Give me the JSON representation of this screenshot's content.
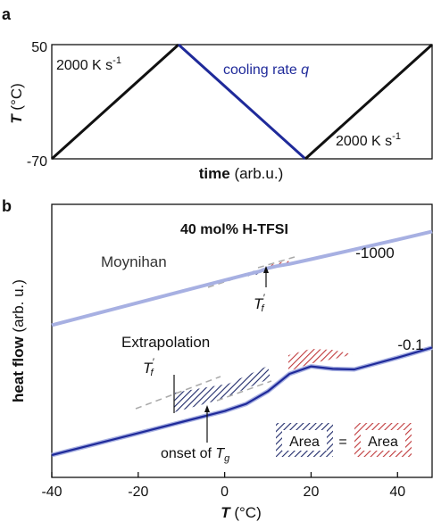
{
  "colors": {
    "axis": "#111111",
    "black_line": "#111111",
    "cooling": "#1f2a9a",
    "curve_light": "#a7b0e2",
    "curve_dark": "#1f2a9a",
    "dash": "#aaaaaa",
    "hatch_blue": "#1f2a6a",
    "hatch_red": "#c0393b"
  },
  "panel_a": {
    "label": "a",
    "ylabel_main": "T",
    "ylabel_unit": " (°C)",
    "xlabel_main": "time",
    "xlabel_unit": " (arb.u.)",
    "ytick_top": "50",
    "ytick_bottom": "-70",
    "heating_rate_text": "2000 K s",
    "heating_rate_exp": "-1",
    "cooling_text": "cooling rate ",
    "cooling_symbol": "q"
  },
  "panel_b": {
    "label": "b",
    "title": "40 mol% H-TFSI",
    "ylabel_main": "heat flow",
    "ylabel_unit": " (arb. u.)",
    "xlabel_main": "T",
    "xlabel_unit": " (°C)",
    "method_top": "Moynihan",
    "method_bottom": "Extrapolation",
    "rate_top": "-1000",
    "rate_bottom": "-0.1",
    "tf_symbol": "T",
    "tf_prime": "′",
    "tf_sub": "f",
    "onset_text": "onset of ",
    "onset_symbol": "T",
    "onset_sub": "g",
    "area_label": "Area",
    "equals": "="
  },
  "chart_data": [
    {
      "type": "line",
      "title": "",
      "xlabel": "time (arb.u.)",
      "ylabel": "T (°C)",
      "ylim": [
        -70,
        50
      ],
      "yticks": [
        50,
        -70
      ],
      "series": [
        {
          "name": "heating 2000 K s-1",
          "x": [
            0,
            1
          ],
          "y": [
            -70,
            50
          ]
        },
        {
          "name": "cooling rate q",
          "x": [
            1,
            2
          ],
          "y": [
            50,
            -70
          ]
        },
        {
          "name": "heating 2000 K s-1",
          "x": [
            2,
            3
          ],
          "y": [
            -70,
            50
          ]
        }
      ]
    },
    {
      "type": "line",
      "title": "40 mol% H-TFSI",
      "xlabel": "T (°C)",
      "ylabel": "heat flow (arb. u.)",
      "xlim": [
        -40,
        48
      ],
      "xticks": [
        -40,
        -20,
        0,
        20,
        40
      ],
      "grid": false,
      "series": [
        {
          "name": "-1000",
          "x": [
            -40,
            -30,
            -20,
            -10,
            0,
            5,
            8,
            10,
            12,
            15,
            20,
            30,
            40,
            48
          ],
          "y": [
            0.52,
            0.565,
            0.61,
            0.655,
            0.7,
            0.722,
            0.735,
            0.748,
            0.756,
            0.765,
            0.784,
            0.823,
            0.862,
            0.895
          ]
        },
        {
          "name": "-0.1",
          "x": [
            -40,
            -30,
            -20,
            -10,
            0,
            5,
            10,
            15,
            20,
            25,
            30,
            40,
            48
          ],
          "y": [
            0.0,
            0.044,
            0.088,
            0.132,
            0.176,
            0.205,
            0.255,
            0.325,
            0.355,
            0.345,
            0.343,
            0.39,
            0.43
          ]
        }
      ],
      "annotations": [
        "Moynihan",
        "Extrapolation",
        "T'f",
        "onset of Tg",
        "Area = Area"
      ]
    }
  ]
}
